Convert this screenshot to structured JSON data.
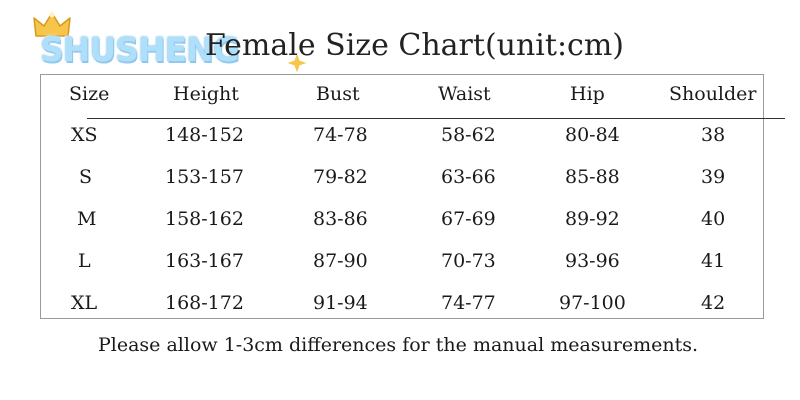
{
  "brand": {
    "logo_text": "SHUSHENG"
  },
  "title": "Female Size Chart(unit:cm)",
  "columns": [
    "Size",
    "Height",
    "Bust",
    "Waist",
    "Hip",
    "Shoulder"
  ],
  "rows": [
    [
      "XS",
      "148-152",
      "74-78",
      "58-62",
      "80-84",
      "38"
    ],
    [
      "S",
      "153-157",
      "79-82",
      "63-66",
      "85-88",
      "39"
    ],
    [
      "M",
      "158-162",
      "83-86",
      "67-69",
      "89-92",
      "40"
    ],
    [
      "L",
      "163-167",
      "87-90",
      "70-73",
      "93-96",
      "41"
    ],
    [
      "XL",
      "168-172",
      "91-94",
      "74-77",
      "97-100",
      "42"
    ]
  ],
  "note": "Please allow 1-3cm differences for the manual measurements.",
  "colors": {
    "logo_fill": "#aee0fb",
    "logo_outline": "#5aa7dc",
    "star": "#f6c54a",
    "crown": "#f6c54a"
  }
}
